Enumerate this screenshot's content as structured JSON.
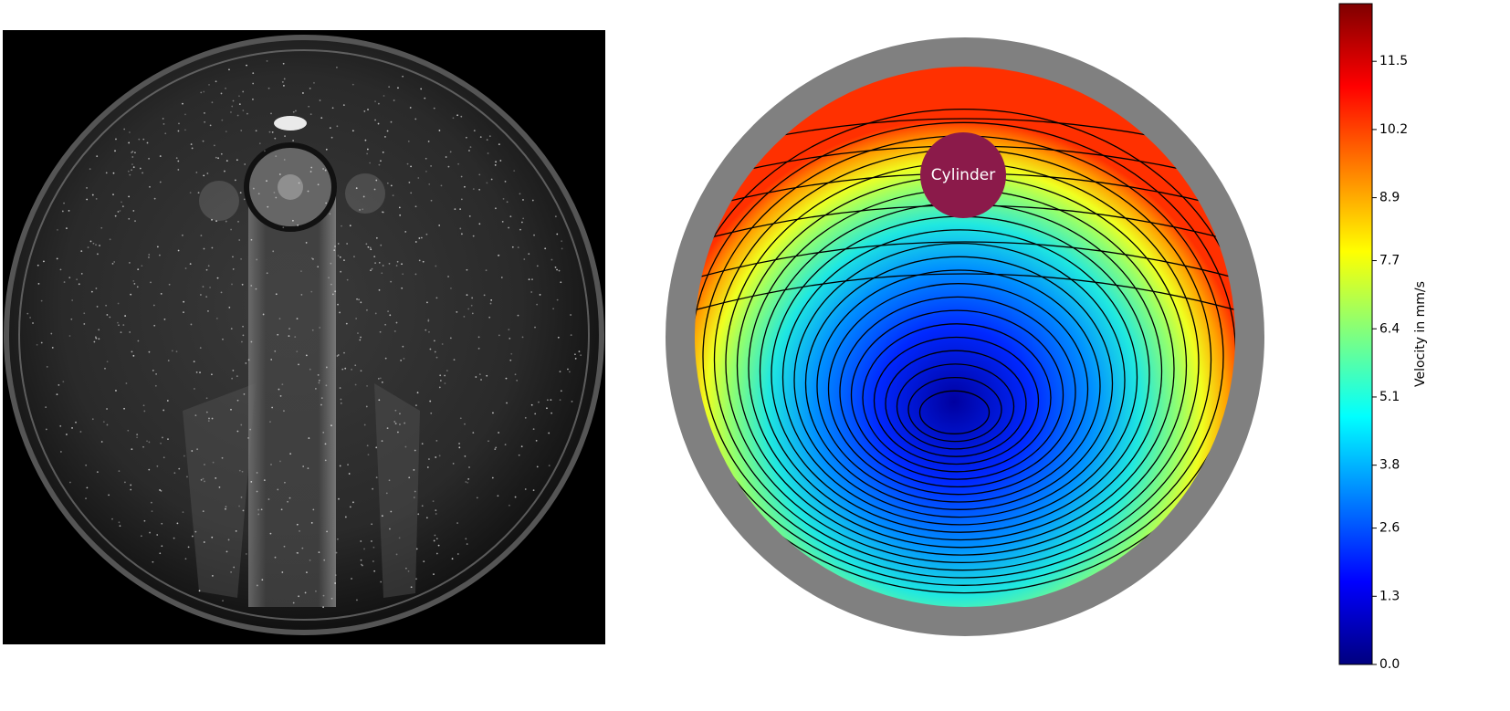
{
  "chart_data": {
    "type": "field",
    "annotation": "Cylinder",
    "colorbar": {
      "label": "Velocity in mm/s",
      "colormap": [
        "#00007f",
        "#0000ff",
        "#007fff",
        "#00ffff",
        "#7fff7f",
        "#ffff00",
        "#ff7f00",
        "#ff0000",
        "#7f0000"
      ],
      "lim": [
        0,
        12.6
      ],
      "ticks": [
        {
          "value": 0,
          "label": "0.0"
        },
        1.3,
        2.6,
        3.8,
        5.1,
        6.4,
        7.7,
        8.9,
        10.2,
        11.5
      ]
    }
  }
}
